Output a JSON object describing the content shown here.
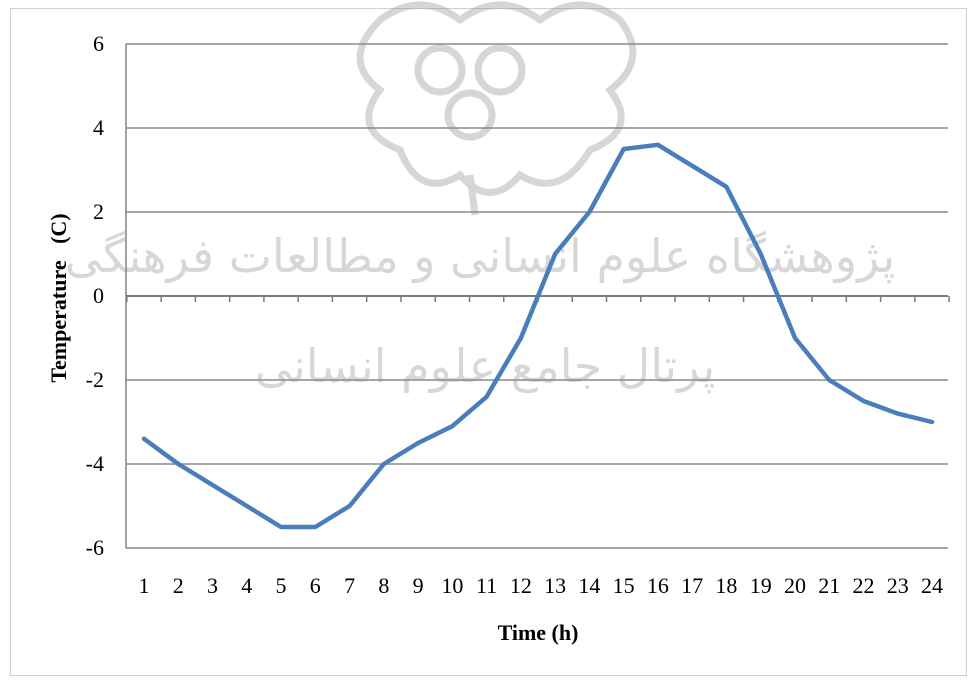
{
  "chart_data": {
    "type": "line",
    "title": "",
    "xlabel": "Time (h)",
    "ylabel": "Temperature   (C)",
    "categories": [
      "1",
      "2",
      "3",
      "4",
      "5",
      "6",
      "7",
      "8",
      "9",
      "10",
      "11",
      "12",
      "13",
      "14",
      "15",
      "16",
      "17",
      "18",
      "19",
      "20",
      "21",
      "22",
      "23",
      "24"
    ],
    "series": [
      {
        "values": [
          -3.4,
          -4.0,
          -4.5,
          -5.0,
          -5.5,
          -5.5,
          -5.0,
          -4.0,
          -3.5,
          -3.1,
          -2.4,
          -1.0,
          1.0,
          2.0,
          3.5,
          3.6,
          3.1,
          2.6,
          1.0,
          -1.0,
          -2.0,
          -2.5,
          -2.8,
          -3.0
        ]
      }
    ],
    "ylim": [
      -6,
      6
    ],
    "yticks": [
      "-6",
      "-4",
      "-2",
      "0",
      "2",
      "4",
      "6"
    ],
    "grid": true,
    "line_color": "#4a7ebb"
  },
  "watermark": {
    "line1": "پژوهشگاه علوم انسانی و مطالعات فرهنگی",
    "line2": "پرتال جامع علوم انسانی",
    "emblem": "rosette-emblem"
  }
}
